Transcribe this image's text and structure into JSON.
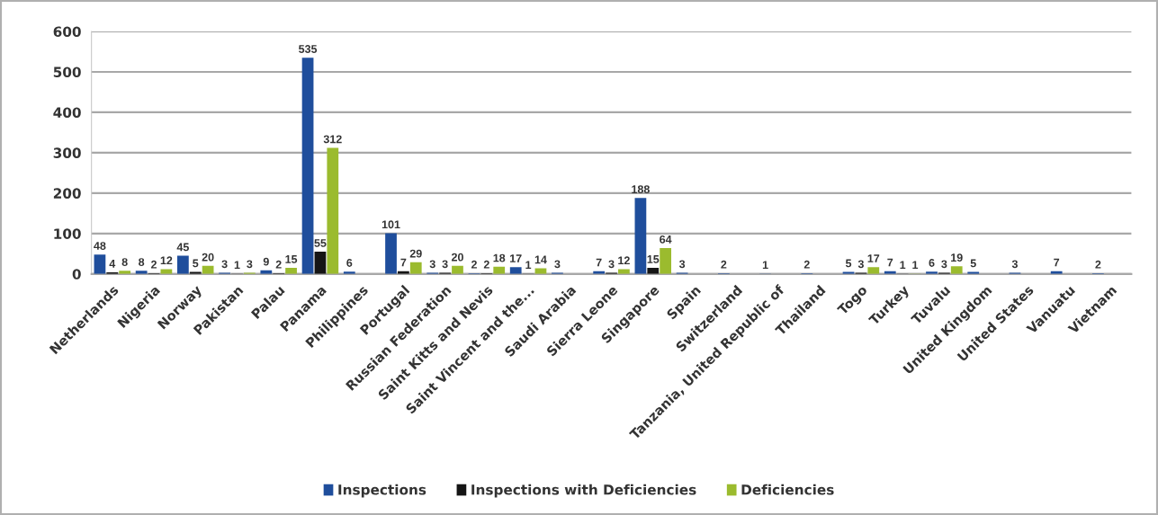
{
  "chart_data": {
    "type": "bar",
    "categories": [
      "Netherlands",
      "Nigeria",
      "Norway",
      "Pakistan",
      "Palau",
      "Panama",
      "Philippines",
      "Portugal",
      "Russian Federation",
      "Saint Kitts and Nevis",
      "Saint Vincent and the...",
      "Saudi Arabia",
      "Sierra Leone",
      "Singapore",
      "Spain",
      "Switzerland",
      "Tanzania, United Republic of",
      "Thailand",
      "Togo",
      "Turkey",
      "Tuvalu",
      "United Kingdom",
      "United States",
      "Vanuatu",
      "Vietnam"
    ],
    "series": [
      {
        "name": "Inspections",
        "color": "#1f4e9c",
        "values": [
          48,
          8,
          45,
          3,
          9,
          535,
          6,
          101,
          3,
          2,
          17,
          3,
          7,
          188,
          3,
          2,
          1,
          2,
          5,
          7,
          6,
          5,
          3,
          7,
          2
        ]
      },
      {
        "name": "Inspections with Deficiencies",
        "color": "#151515",
        "values": [
          4,
          2,
          5,
          1,
          2,
          55,
          null,
          7,
          3,
          2,
          1,
          null,
          3,
          15,
          null,
          null,
          null,
          null,
          3,
          1,
          3,
          null,
          null,
          null,
          null
        ]
      },
      {
        "name": "Deficiencies",
        "color": "#9bbb2e",
        "values": [
          8,
          12,
          20,
          3,
          15,
          312,
          null,
          29,
          20,
          18,
          14,
          null,
          12,
          64,
          null,
          null,
          null,
          null,
          17,
          1,
          19,
          null,
          null,
          null,
          null
        ]
      }
    ],
    "ylim": [
      0,
      600
    ],
    "yticks": [
      0,
      100,
      200,
      300,
      400,
      500,
      600
    ],
    "grid": "y",
    "legend": "bottom",
    "data_labels": true
  }
}
